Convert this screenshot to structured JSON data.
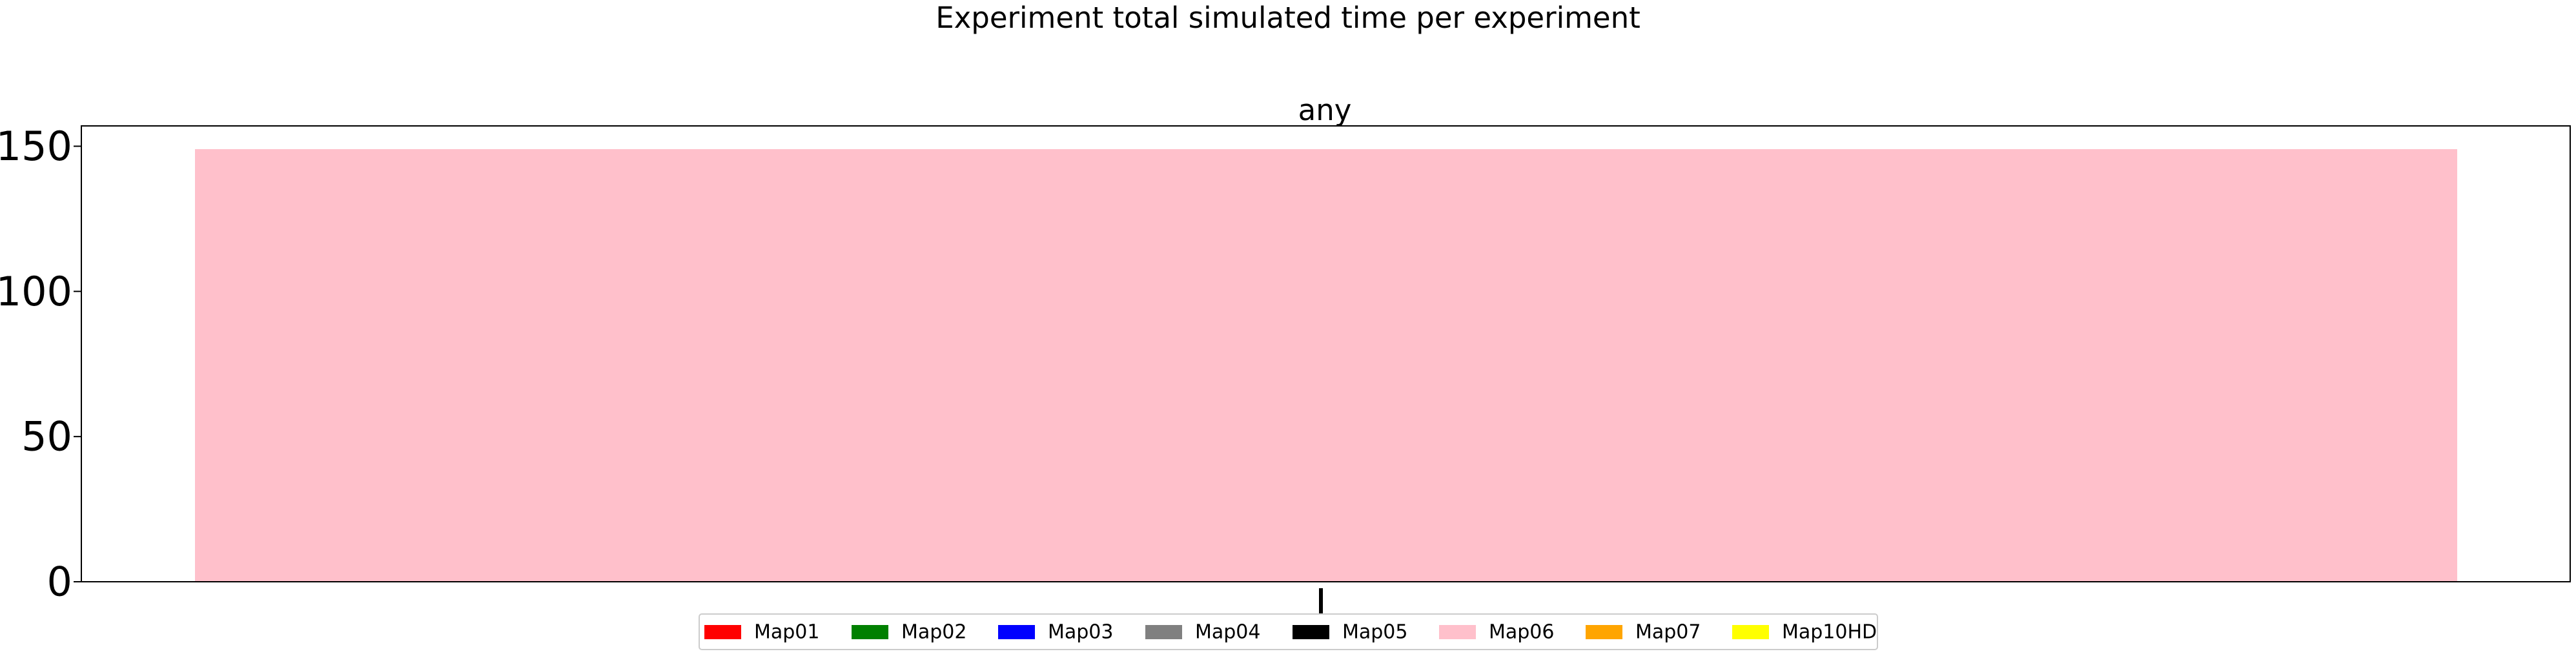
{
  "colors": {
    "background": "#ffffff",
    "axis": "#000000",
    "legend_border": "#cccccc"
  },
  "chart_data": {
    "type": "bar",
    "title": "Experiment total simulated time per experiment",
    "subtitle": "any",
    "xlabel": "",
    "ylabel": "",
    "categories": [
      ""
    ],
    "ylim": [
      0,
      157
    ],
    "yticks": [
      0,
      50,
      100,
      150
    ],
    "grid": false,
    "legend_position": "bottom-center",
    "series": [
      {
        "name": "Map01",
        "color": "#ff0000",
        "values": [
          0
        ]
      },
      {
        "name": "Map02",
        "color": "#008000",
        "values": [
          0
        ]
      },
      {
        "name": "Map03",
        "color": "#0000ff",
        "values": [
          0
        ]
      },
      {
        "name": "Map04",
        "color": "#808080",
        "values": [
          0
        ]
      },
      {
        "name": "Map05",
        "color": "#000000",
        "values": [
          0
        ]
      },
      {
        "name": "Map06",
        "color": "#ffc0cb",
        "values": [
          149
        ]
      },
      {
        "name": "Map07",
        "color": "#ffa500",
        "values": [
          0
        ]
      },
      {
        "name": "Map10HD",
        "color": "#ffff00",
        "values": [
          0
        ]
      }
    ]
  }
}
